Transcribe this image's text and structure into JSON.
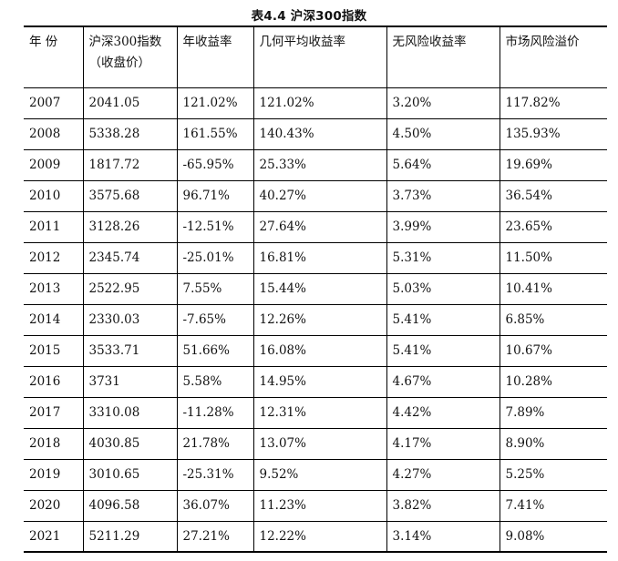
{
  "caption": "表4.4 沪深300指数",
  "table": {
    "headers": [
      "年 份",
      "沪深300指数（收盘价）",
      "年收益率",
      "几何平均收益率",
      "无风险收益率",
      "市场风险溢价"
    ],
    "rows": [
      [
        "2007",
        "2041.05",
        "121.02%",
        "121.02%",
        "3.20%",
        "117.82%"
      ],
      [
        "2008",
        "5338.28",
        "161.55%",
        "140.43%",
        "4.50%",
        "135.93%"
      ],
      [
        "2009",
        "1817.72",
        "-65.95%",
        "25.33%",
        "5.64%",
        "19.69%"
      ],
      [
        "2010",
        "3575.68",
        "96.71%",
        "40.27%",
        "3.73%",
        "36.54%"
      ],
      [
        "2011",
        "3128.26",
        "-12.51%",
        "27.64%",
        "3.99%",
        "23.65%"
      ],
      [
        "2012",
        "2345.74",
        "-25.01%",
        "16.81%",
        "5.31%",
        "11.50%"
      ],
      [
        "2013",
        "2522.95",
        "7.55%",
        "15.44%",
        "5.03%",
        "10.41%"
      ],
      [
        "2014",
        "2330.03",
        "-7.65%",
        "12.26%",
        "5.41%",
        "6.85%"
      ],
      [
        "2015",
        "3533.71",
        "51.66%",
        "16.08%",
        "5.41%",
        "10.67%"
      ],
      [
        "2016",
        "3731",
        "5.58%",
        "14.95%",
        "4.67%",
        "10.28%"
      ],
      [
        "2017",
        "3310.08",
        "-11.28%",
        "12.31%",
        "4.42%",
        "7.89%"
      ],
      [
        "2018",
        "4030.85",
        "21.78%",
        "13.07%",
        "4.17%",
        "8.90%"
      ],
      [
        "2019",
        "3010.65",
        "-25.31%",
        "9.52%",
        "4.27%",
        "5.25%"
      ],
      [
        "2020",
        "4096.58",
        "36.07%",
        "11.23%",
        "3.82%",
        "7.41%"
      ],
      [
        "2021",
        "5211.29",
        "27.21%",
        "12.22%",
        "3.14%",
        "9.08%"
      ]
    ]
  }
}
